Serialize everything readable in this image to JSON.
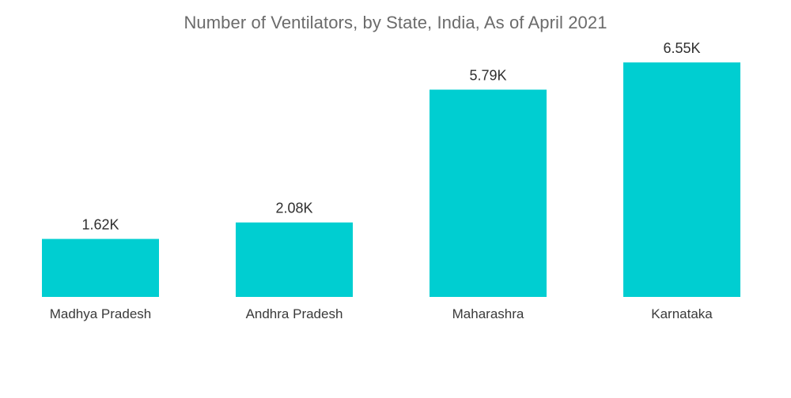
{
  "title": "Number of Ventilators, by State, India, As of April 2021",
  "chart_data": {
    "type": "bar",
    "title": "Number of Ventilators, by State, India, As of April 2021",
    "categories": [
      "Madhya Pradesh",
      "Andhra Pradesh",
      "Maharashra",
      "Karnataka"
    ],
    "values": [
      1620,
      2080,
      5790,
      6550
    ],
    "value_labels": [
      "1.62K",
      "2.08K",
      "5.79K",
      "6.55K"
    ],
    "xlabel": "",
    "ylabel": "",
    "ylim": [
      0,
      7500
    ],
    "grid": false,
    "legend": "none",
    "bar_color": "#00CED1"
  }
}
